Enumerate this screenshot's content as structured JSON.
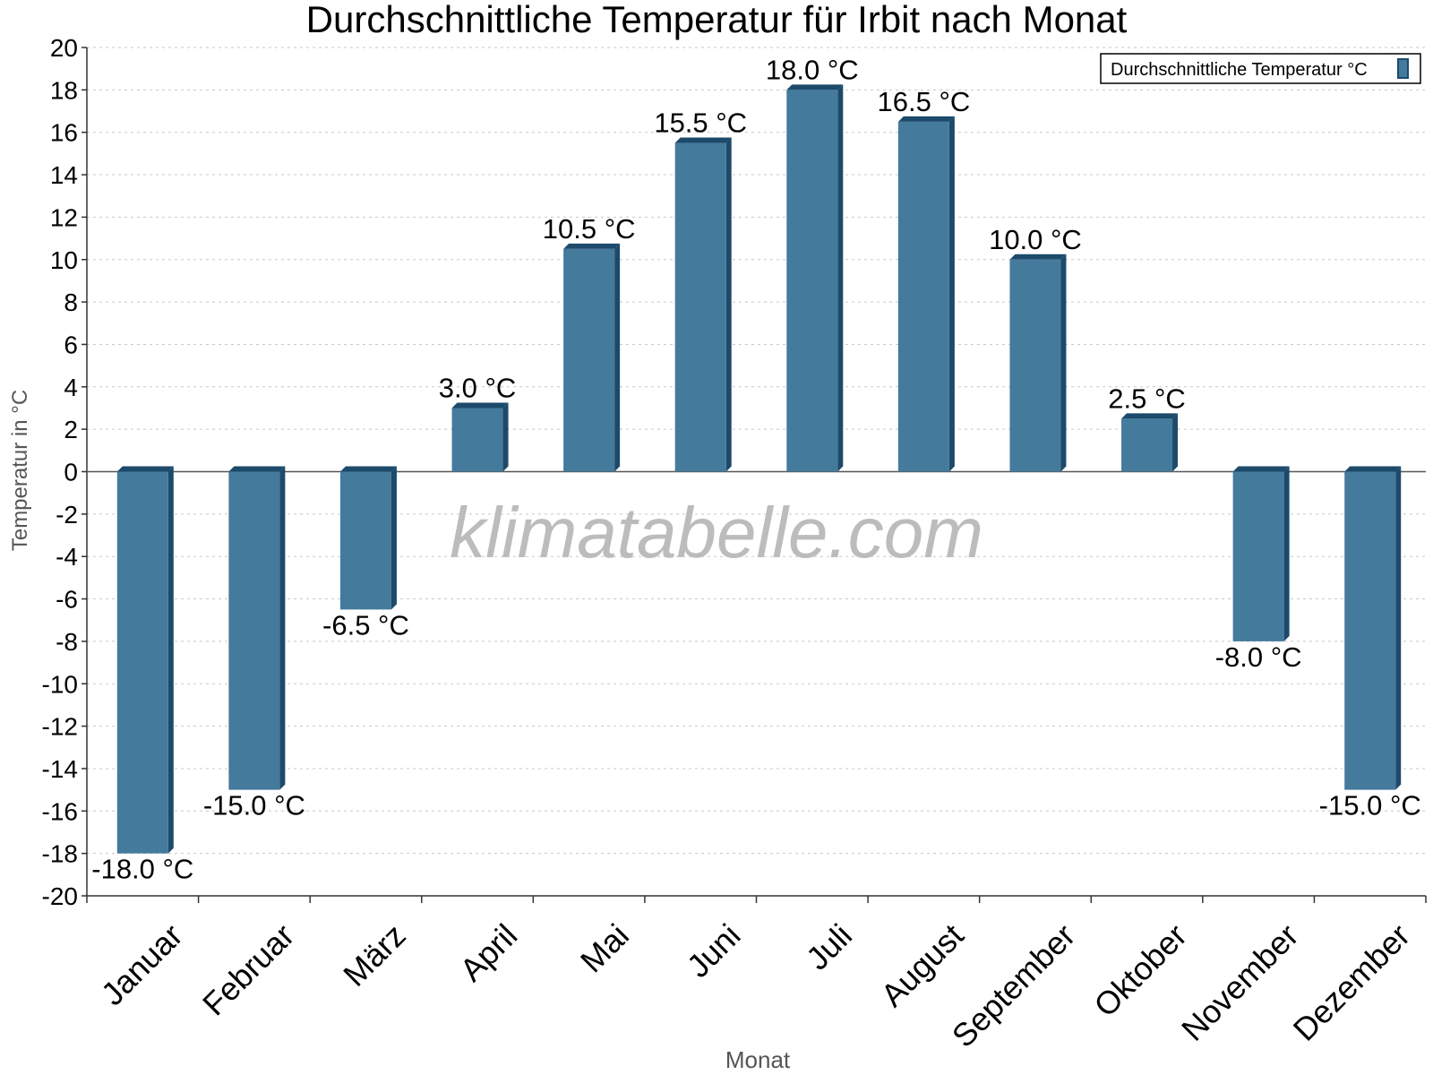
{
  "chart_data": {
    "type": "bar",
    "title": "Durchschnittliche Temperatur für Irbit nach Monat",
    "xlabel": "Monat",
    "ylabel": "Temperatur in °C",
    "categories": [
      "Januar",
      "Februar",
      "März",
      "April",
      "Mai",
      "Juni",
      "Juli",
      "August",
      "September",
      "Oktober",
      "November",
      "Dezember"
    ],
    "series": [
      {
        "name": "Durchschnittliche Temperatur °C",
        "values": [
          -18.0,
          -15.0,
          -6.5,
          3.0,
          10.5,
          15.5,
          18.0,
          16.5,
          10.0,
          2.5,
          -8.0,
          -15.0
        ],
        "labels": [
          "-18.0 °C",
          "-15.0 °C",
          "-6.5 °C",
          "3.0 °C",
          "10.5 °C",
          "15.5 °C",
          "18.0 °C",
          "16.5 °C",
          "10.0 °C",
          "2.5 °C",
          "-8.0 °C",
          "-15.0 °C"
        ]
      }
    ],
    "ylim": [
      -20,
      20
    ],
    "ytick_step": 2,
    "grid": true,
    "legend": "top-right",
    "bar_color": "#447a9c",
    "bar_side_color": "#1d4a6b",
    "watermark": "klimatabelle.com"
  }
}
